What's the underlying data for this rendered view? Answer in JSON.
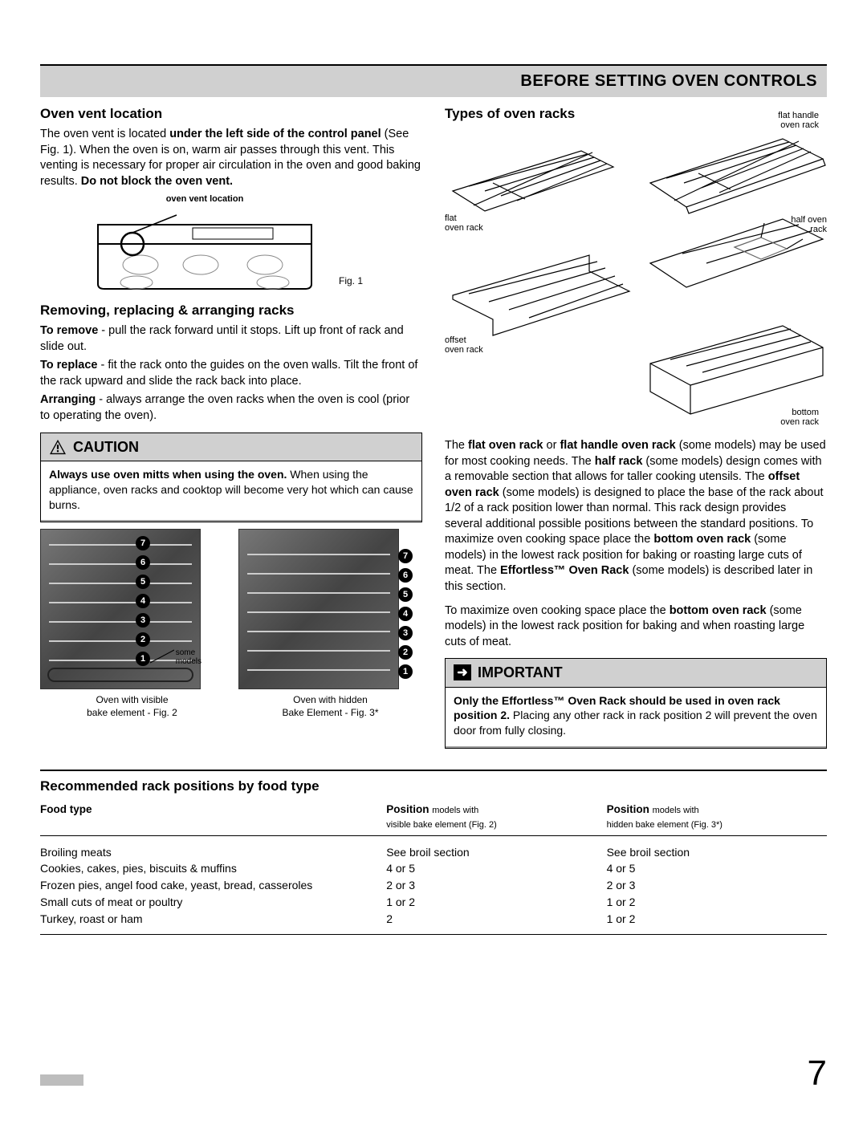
{
  "header": {
    "title": "BEFORE SETTING OVEN CONTROLS"
  },
  "left": {
    "vent": {
      "heading": "Oven vent location",
      "body_pre": "The oven vent is located ",
      "body_bold1": "under the left side of the control panel",
      "body_mid": " (See Fig. 1).  When the oven is on, warm air passes through this vent. This venting is necessary for proper air circulation in the oven and good baking results. ",
      "body_bold2": "Do not block the oven vent.",
      "fig_label": "oven vent location",
      "fig_caption": "Fig. 1"
    },
    "racks": {
      "heading": "Removing, replacing & arranging racks",
      "p1_bold": "To remove",
      "p1_rest": " - pull the rack forward until it stops. Lift up front of rack and slide out.",
      "p2_bold": "To replace",
      "p2_rest": " - fit the rack onto the guides on the oven walls. Tilt the front of the rack upward and slide the rack back into place.",
      "p3_bold": "Arranging",
      "p3_rest": " - always arrange the oven racks when the oven is cool (prior to  operating the oven)."
    },
    "caution": {
      "label": "CAUTION",
      "body_bold": "Always use oven mitts when using the oven.",
      "body_rest": "  When using the appliance, oven racks and cooktop will become very hot which can cause burns."
    },
    "photos": {
      "numbers7": [
        "7",
        "6",
        "5",
        "4",
        "3",
        "2",
        "1"
      ],
      "some_models": "some\nmodels",
      "cap1": "Oven with visible\nbake element - Fig. 2",
      "cap2": "Oven with hidden\nBake Element - Fig. 3*"
    }
  },
  "right": {
    "types": {
      "heading": "Types of oven racks",
      "labels": {
        "flat": "flat\noven rack",
        "flat_handle": "flat handle\noven rack",
        "half": "half oven\nrack",
        "offset": "offset\noven rack",
        "bottom": "bottom\noven rack"
      }
    },
    "para1": {
      "t1": "The ",
      "b1": "flat oven rack",
      "t2": " or ",
      "b2": "flat handle oven rack",
      "t3": " (some models) may be used for most cooking needs. The ",
      "b3": "half rack",
      "t4": " (some models) design comes with a removable section that allows for taller cooking utensils. The ",
      "b4": "offset oven rack",
      "t5": " (some models) is designed to place the base of the rack about 1/2 of a rack position lower than normal. This rack design provides several additional possible positions between the standard positions. To maximize oven cooking space place the ",
      "b5": "bottom oven rack",
      "t6": " (some models) in the lowest rack position for baking or roasting large cuts of meat. The ",
      "b6": "Effortless™ Oven Rack",
      "t7": " (some models) is described later in this section."
    },
    "para2": {
      "t1": "To maximize oven cooking space place the ",
      "b1": "bottom oven rack",
      "t2": " (some models) in the lowest rack position for baking and when roasting large cuts of meat."
    },
    "important": {
      "label": "IMPORTANT",
      "body_bold": "Only the Effortless™ Oven Rack should be used in oven rack position 2.",
      "body_rest": " Placing any other rack in rack position 2 will prevent the oven door from fully closing."
    }
  },
  "table": {
    "heading": "Recommended rack positions by food type",
    "col1": "Food type",
    "col2_bold": "Position ",
    "col2_sub": "models with\nvisible bake element (Fig. 2)",
    "col3_bold": "Position ",
    "col3_sub": "models with\nhidden bake element (Fig. 3*)",
    "rows": [
      {
        "food": "Broiling meats",
        "p1": "See broil section",
        "p2": "See broil section"
      },
      {
        "food": "Cookies, cakes, pies, biscuits & muffins",
        "p1": "4 or 5",
        "p2": "4 or 5"
      },
      {
        "food": "Frozen pies, angel food cake, yeast, bread, casseroles",
        "p1": "2 or 3",
        "p2": "2 or 3"
      },
      {
        "food": "Small cuts of meat or poultry",
        "p1": "1 or 2",
        "p2": "1 or 2"
      },
      {
        "food": "Turkey, roast or ham",
        "p1": "2",
        "p2": "1 or 2"
      }
    ]
  },
  "page_number": "7",
  "colors": {
    "header_bg": "#d0d0d0",
    "caution_bg": "#d0d0d0",
    "text": "#000000",
    "page_bg": "#ffffff"
  }
}
